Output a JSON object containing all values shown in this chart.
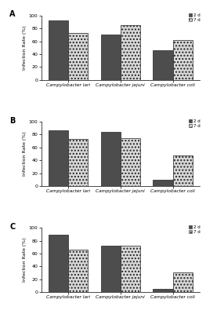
{
  "panels": [
    {
      "label": "A",
      "data_2d": [
        93,
        71,
        46
      ],
      "data_7d": [
        73,
        85,
        62
      ]
    },
    {
      "label": "B",
      "data_2d": [
        87,
        84,
        10
      ],
      "data_7d": [
        73,
        75,
        47
      ]
    },
    {
      "label": "C",
      "data_2d": [
        89,
        72,
        5
      ],
      "data_7d": [
        66,
        72,
        30
      ]
    }
  ],
  "categories": [
    "Campylobacter lari",
    "Campylobacter jejuni",
    "Campylobacter coli"
  ],
  "ylabel": "Infection Rate (%)",
  "ylim": [
    0,
    100
  ],
  "yticks": [
    0,
    20,
    40,
    60,
    80,
    100
  ],
  "legend_labels": [
    "2 d",
    "7 d"
  ],
  "color_2d": "#4d4d4d",
  "color_7d": "#d8d8d8",
  "bar_width": 0.38,
  "bg_color": "#ffffff",
  "hatch_7d": "...."
}
